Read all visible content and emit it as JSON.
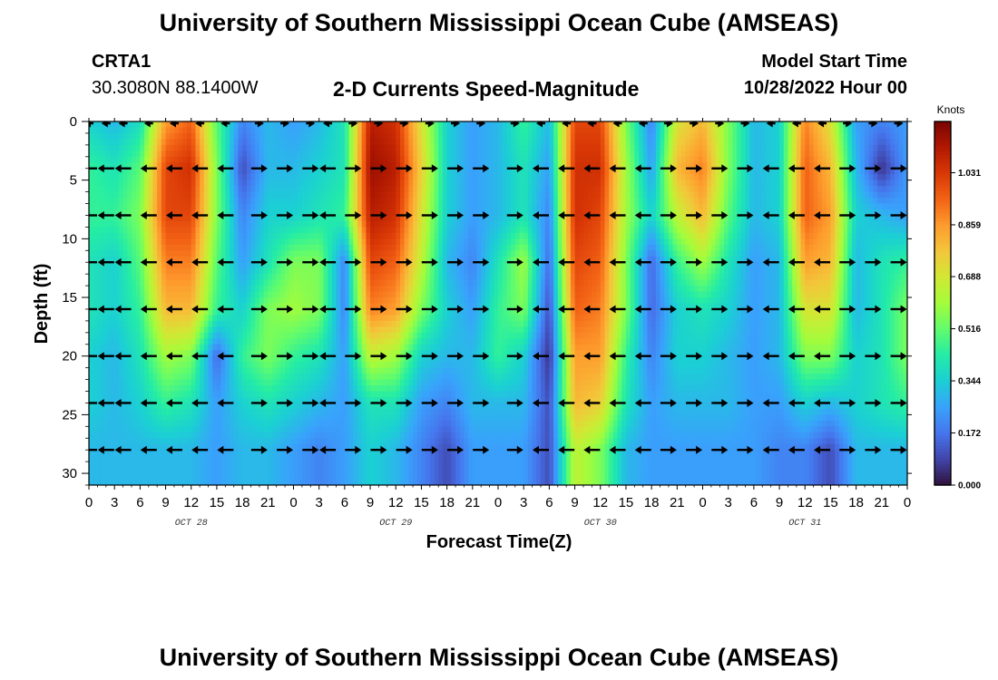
{
  "header": {
    "title": "University of Southern Mississippi Ocean Cube (AMSEAS)",
    "station_id": "CRTA1",
    "station_coords": "30.3080N  88.1400W",
    "plot_title": "2-D Currents Speed-Magnitude",
    "model_start_label": "Model Start Time",
    "model_start_value": "10/28/2022 Hour 00"
  },
  "footer": {
    "title": "University of Southern Mississippi Ocean Cube (AMSEAS)"
  },
  "colors": {
    "arrow": "#000000",
    "frame": "#000000",
    "colorscale": [
      "#30123b",
      "#4145ab",
      "#4675ed",
      "#39a2fc",
      "#1bcfd4",
      "#24eca6",
      "#61fc6c",
      "#a4fc3b",
      "#d1e834",
      "#f3c63a",
      "#fe9b2d",
      "#f36315",
      "#d93806",
      "#b11901",
      "#7a0402"
    ]
  },
  "chart_data": {
    "type": "heatmap",
    "title": "2-D Currents Speed-Magnitude",
    "xlabel": "Forecast Time(Z)",
    "ylabel": "Depth (ft)",
    "units": "Knots",
    "x_range_hours": [
      0,
      96
    ],
    "y_range_ft": [
      0,
      31
    ],
    "x_tick_labels": [
      "0",
      "3",
      "6",
      "9",
      "12",
      "15",
      "18",
      "21",
      "0",
      "3",
      "6",
      "9",
      "12",
      "15",
      "18",
      "21",
      "0",
      "3",
      "6",
      "9",
      "12",
      "15",
      "18",
      "21",
      "0",
      "3",
      "6",
      "9",
      "12",
      "15",
      "18",
      "21",
      "0"
    ],
    "date_labels": [
      {
        "label": "OCT 28",
        "hour": 12
      },
      {
        "label": "OCT 29",
        "hour": 36
      },
      {
        "label": "OCT 30",
        "hour": 60
      },
      {
        "label": "OCT 31",
        "hour": 84
      }
    ],
    "y_ticks": [
      0,
      5,
      10,
      15,
      20,
      25,
      30
    ],
    "colorbar_ticks": [
      "1.031",
      "0.859",
      "0.688",
      "0.516",
      "0.344",
      "0.172",
      "0.000"
    ],
    "colorbar_range": [
      0.0,
      1.2
    ],
    "depths_ft": [
      0,
      4,
      8,
      12,
      16,
      20,
      24,
      28
    ],
    "hours": [
      0,
      3,
      6,
      9,
      12,
      15,
      18,
      21,
      24,
      27,
      30,
      33,
      36,
      39,
      42,
      45,
      48,
      51,
      54,
      57,
      60,
      63,
      66,
      69,
      72,
      75,
      78,
      81,
      84,
      87,
      90,
      93,
      96
    ],
    "speed_knots": [
      [
        0.35,
        0.3,
        0.38,
        0.85,
        0.95,
        0.5,
        0.2,
        0.3,
        0.25,
        0.3,
        0.4,
        1.1,
        1.05,
        0.7,
        0.35,
        0.25,
        0.3,
        0.45,
        0.3,
        1.0,
        1.0,
        0.55,
        0.2,
        0.7,
        0.8,
        0.55,
        0.3,
        0.35,
        0.9,
        0.7,
        0.25,
        0.2,
        0.25
      ],
      [
        0.45,
        0.4,
        0.5,
        1.0,
        1.05,
        0.55,
        0.1,
        0.3,
        0.3,
        0.35,
        0.4,
        1.15,
        1.1,
        0.75,
        0.35,
        0.25,
        0.3,
        0.4,
        0.25,
        1.05,
        1.05,
        0.6,
        0.25,
        0.8,
        0.9,
        0.55,
        0.3,
        0.35,
        0.95,
        0.8,
        0.3,
        0.05,
        0.25
      ],
      [
        0.45,
        0.45,
        0.55,
        1.0,
        1.0,
        0.55,
        0.2,
        0.35,
        0.35,
        0.4,
        0.45,
        1.1,
        1.05,
        0.7,
        0.35,
        0.25,
        0.3,
        0.4,
        0.2,
        1.05,
        1.0,
        0.6,
        0.35,
        0.65,
        0.8,
        0.5,
        0.3,
        0.35,
        0.95,
        0.85,
        0.35,
        0.3,
        0.25
      ],
      [
        0.4,
        0.35,
        0.5,
        0.9,
        0.9,
        0.5,
        0.25,
        0.4,
        0.55,
        0.55,
        0.2,
        1.0,
        0.95,
        0.65,
        0.3,
        0.2,
        0.4,
        0.6,
        0.15,
        1.0,
        0.95,
        0.55,
        0.15,
        0.45,
        0.6,
        0.4,
        0.25,
        0.3,
        0.85,
        0.8,
        0.3,
        0.4,
        0.45
      ],
      [
        0.4,
        0.35,
        0.45,
        0.8,
        0.8,
        0.45,
        0.35,
        0.55,
        0.6,
        0.55,
        0.2,
        0.9,
        0.85,
        0.55,
        0.35,
        0.25,
        0.45,
        0.55,
        0.1,
        0.95,
        0.9,
        0.55,
        0.15,
        0.35,
        0.4,
        0.35,
        0.25,
        0.3,
        0.7,
        0.7,
        0.3,
        0.4,
        0.55
      ],
      [
        0.35,
        0.3,
        0.4,
        0.6,
        0.55,
        0.15,
        0.45,
        0.55,
        0.45,
        0.4,
        0.25,
        0.65,
        0.6,
        0.35,
        0.3,
        0.3,
        0.45,
        0.35,
        0.05,
        0.85,
        0.85,
        0.45,
        0.2,
        0.35,
        0.35,
        0.3,
        0.25,
        0.3,
        0.55,
        0.55,
        0.35,
        0.4,
        0.55
      ],
      [
        0.35,
        0.3,
        0.35,
        0.45,
        0.4,
        0.25,
        0.35,
        0.4,
        0.35,
        0.3,
        0.25,
        0.4,
        0.4,
        0.25,
        0.2,
        0.3,
        0.3,
        0.3,
        0.1,
        0.8,
        0.75,
        0.4,
        0.25,
        0.3,
        0.3,
        0.3,
        0.25,
        0.25,
        0.35,
        0.3,
        0.35,
        0.4,
        0.45
      ],
      [
        0.3,
        0.3,
        0.3,
        0.3,
        0.3,
        0.25,
        0.3,
        0.3,
        0.25,
        0.2,
        0.25,
        0.35,
        0.3,
        0.2,
        0.1,
        0.25,
        0.25,
        0.25,
        0.1,
        0.65,
        0.55,
        0.3,
        0.25,
        0.25,
        0.25,
        0.25,
        0.25,
        0.2,
        0.2,
        0.1,
        0.3,
        0.3,
        0.3
      ]
    ],
    "arrows_at_hours": [
      0,
      2,
      4,
      7,
      10,
      13,
      16,
      20,
      23,
      26,
      28,
      31,
      34,
      37,
      40,
      43,
      46,
      50,
      53,
      56,
      59,
      62,
      65,
      68,
      71,
      74,
      77,
      80,
      83,
      86,
      89,
      92,
      95
    ],
    "arrow_direction_pattern": [
      "W",
      "W",
      "W",
      "W",
      "W",
      "W",
      "W",
      "E",
      "E",
      "E",
      "W",
      "E",
      "E",
      "E",
      "E",
      "E",
      "E",
      "E",
      "W",
      "W",
      "W",
      "W",
      "W",
      "E",
      "E",
      "E",
      "E",
      "W",
      "W",
      "W",
      "E",
      "E",
      "E"
    ]
  }
}
